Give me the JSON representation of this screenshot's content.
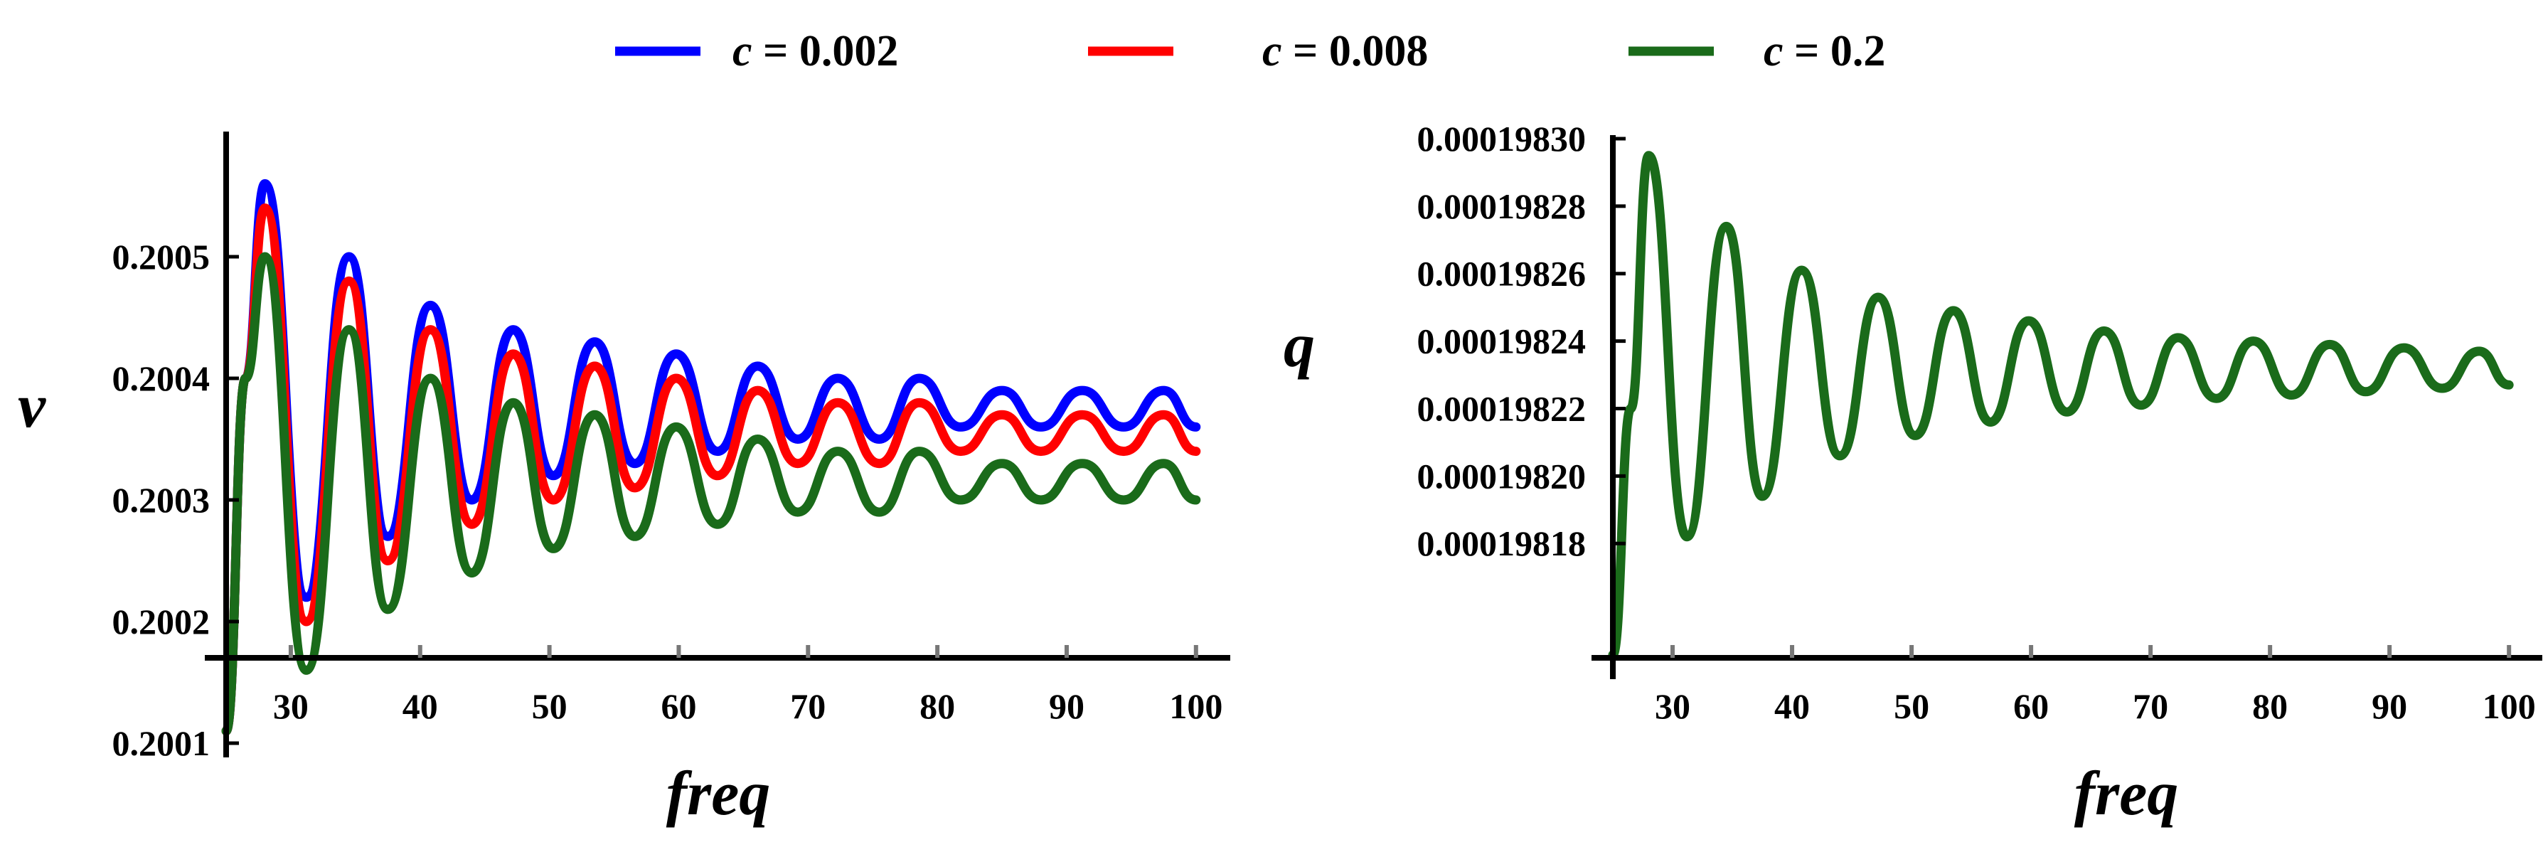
{
  "legend": {
    "placement": "top-center",
    "entries": [
      {
        "var": "c",
        "text": " = 0.002",
        "color": "#0000ff"
      },
      {
        "var": "c",
        "text": " = 0.008",
        "color": "#ff0000"
      },
      {
        "var": "c",
        "text": " = 0.2",
        "color": "#1a6b1a"
      }
    ]
  },
  "chart_data": [
    {
      "type": "line",
      "xlabel": "freq",
      "ylabel": "v",
      "xlim": [
        25,
        101
      ],
      "ylim": [
        0.2001,
        0.2006
      ],
      "x_axis_at_y": 0.20013,
      "y_axis_at_x": 25,
      "xticks": [
        30,
        40,
        50,
        60,
        70,
        80,
        90,
        100
      ],
      "yticks": [
        0.2001,
        0.2002,
        0.2003,
        0.2004,
        0.2005
      ],
      "ytick_labels": [
        "0.2001",
        "0.2002",
        "0.2003",
        "0.2004",
        "0.2005"
      ],
      "line_width": 13,
      "series": [
        {
          "name": "c = 0.002",
          "color": "#0000ff",
          "x": [
            25,
            26.5,
            28,
            31.2,
            34.5,
            37.5,
            40.8,
            44,
            47.2,
            50.3,
            53.5,
            56.6,
            59.8,
            63,
            66.1,
            69.2,
            72.3,
            75.5,
            78.6,
            81.8,
            85,
            88,
            91.2,
            94.4,
            97.5,
            100
          ],
          "y": [
            0.20011,
            0.2004,
            0.20056,
            0.20022,
            0.2005,
            0.20027,
            0.20046,
            0.2003,
            0.20044,
            0.20032,
            0.20043,
            0.20033,
            0.20042,
            0.20034,
            0.20041,
            0.20035,
            0.2004,
            0.20035,
            0.2004,
            0.20036,
            0.20039,
            0.20036,
            0.20039,
            0.20036,
            0.20039,
            0.20036
          ]
        },
        {
          "name": "c = 0.008",
          "color": "#ff0000",
          "x": [
            25,
            26.5,
            28,
            31.2,
            34.5,
            37.5,
            40.8,
            44,
            47.2,
            50.3,
            53.5,
            56.6,
            59.8,
            63,
            66.1,
            69.2,
            72.3,
            75.5,
            78.6,
            81.8,
            85,
            88,
            91.2,
            94.4,
            97.5,
            100
          ],
          "y": [
            0.20011,
            0.2004,
            0.20054,
            0.2002,
            0.20048,
            0.20025,
            0.20044,
            0.20028,
            0.20042,
            0.2003,
            0.20041,
            0.20031,
            0.2004,
            0.20032,
            0.20039,
            0.20033,
            0.20038,
            0.20033,
            0.20038,
            0.20034,
            0.20037,
            0.20034,
            0.20037,
            0.20034,
            0.20037,
            0.20034
          ]
        },
        {
          "name": "c = 0.2",
          "color": "#1a6b1a",
          "x": [
            25,
            26.5,
            28,
            31.2,
            34.5,
            37.5,
            40.8,
            44,
            47.2,
            50.3,
            53.5,
            56.6,
            59.8,
            63,
            66.1,
            69.2,
            72.3,
            75.5,
            78.6,
            81.8,
            85,
            88,
            91.2,
            94.4,
            97.5,
            100
          ],
          "y": [
            0.20011,
            0.2004,
            0.2005,
            0.20016,
            0.20044,
            0.20021,
            0.2004,
            0.20024,
            0.20038,
            0.20026,
            0.20037,
            0.20027,
            0.20036,
            0.20028,
            0.20035,
            0.20029,
            0.20034,
            0.20029,
            0.20034,
            0.2003,
            0.20033,
            0.2003,
            0.20033,
            0.2003,
            0.20033,
            0.2003
          ]
        }
      ]
    },
    {
      "type": "line",
      "xlabel": "freq",
      "ylabel": "q",
      "xlim": [
        25,
        101
      ],
      "ylim": [
        0.000198144,
        0.0001983
      ],
      "x_axis_at_y": 0.000198145,
      "y_axis_at_x": 25,
      "xticks": [
        30,
        40,
        50,
        60,
        70,
        80,
        90,
        100
      ],
      "yticks": [
        0.00019818,
        0.0001982,
        0.00019822,
        0.00019824,
        0.00019826,
        0.00019828,
        0.0001983
      ],
      "ytick_labels": [
        "0.00019818",
        "0.00019820",
        "0.00019822",
        "0.00019824",
        "0.00019826",
        "0.00019828",
        "0.00019830"
      ],
      "line_width": 13,
      "series": [
        {
          "name": "c = 0.2",
          "color": "#1a6b1a",
          "x": [
            25,
            26.5,
            28,
            31.2,
            34.5,
            37.5,
            40.8,
            44,
            47.2,
            50.3,
            53.5,
            56.6,
            59.8,
            63,
            66.1,
            69.2,
            72.3,
            75.5,
            78.6,
            81.8,
            85,
            88,
            91.2,
            94.4,
            97.5,
            100
          ],
          "y": [
            0.000198147,
            0.00019822,
            0.000198295,
            0.000198182,
            0.000198274,
            0.000198194,
            0.000198261,
            0.000198206,
            0.000198253,
            0.000198212,
            0.000198249,
            0.000198216,
            0.000198246,
            0.000198219,
            0.000198243,
            0.000198221,
            0.000198241,
            0.000198223,
            0.00019824,
            0.000198224,
            0.000198239,
            0.000198225,
            0.000198238,
            0.000198226,
            0.000198237,
            0.000198227
          ]
        }
      ]
    }
  ]
}
